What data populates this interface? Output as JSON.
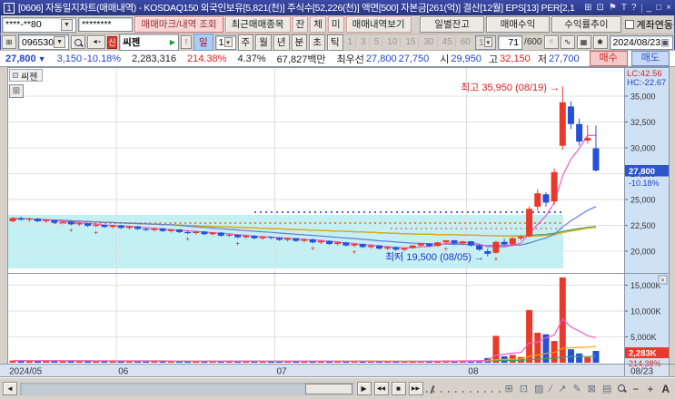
{
  "window": {
    "badge": "1",
    "title": "[0606] 자동일지차트(매매내역) - KOSDAQ150 외국인보유[5,821(천)] 주식수[52,226(천)] 액면[500] 자본금[261(억)] 결산[12월] EPS[13] PER[2,1",
    "icons": [
      "⊞",
      "⊡",
      "⚑",
      "T",
      "?"
    ],
    "min": "_",
    "max": "□",
    "close": "×"
  },
  "icons": {
    "dropdown": "▼",
    "spinner": "▾",
    "calendar": "▣",
    "floppy": "▦",
    "gear": "✱",
    "speaker": "◄",
    "grid": "⊞",
    "window": "⊞",
    "alert": "!",
    "green_play": "▶"
  },
  "toolbar1": {
    "account_value": "****-**80",
    "password_value": "********",
    "btn_mark": "매매마크/내역 조회",
    "btn_recent": "최근매매종목",
    "btn_jan": "잔",
    "btn_che": "체",
    "btn_mi": "미",
    "btn_history": "매매내역보기",
    "btn_daily": "일별잔고",
    "btn_profit": "매매수익",
    "btn_yield": "수익률추이",
    "checkbox_label": "계좌연동"
  },
  "toolbar2": {
    "code_value": "096530",
    "badge": "신",
    "stock_name": "씨젠",
    "period_day": "일",
    "period_unit": "1",
    "periods": [
      "주",
      "월",
      "년",
      "분",
      "초",
      "틱"
    ],
    "tick_presets": [
      "1",
      "3",
      "5",
      "10",
      "15",
      "30",
      "45",
      "60"
    ],
    "preset_select": "1",
    "bar_count": "71",
    "bar_max": "/600",
    "date_value": "2024/08/23"
  },
  "quote": {
    "price": "27,800",
    "arrow": "▼",
    "change": "3,150",
    "change_pct": "-10.18%",
    "volume": "2,283,316",
    "volume_ratio": "214.38%",
    "turnover": "4.37%",
    "amount": "67,827백만",
    "best_label": "최우선",
    "bid": "27,800",
    "ask": "27,750",
    "open_label": "시",
    "open": "29,950",
    "high_label": "고",
    "high": "32,150",
    "low_label": "저",
    "low": "27,700",
    "buy_button": "매수",
    "sell_button": "매도"
  },
  "chart": {
    "tab_label": "씨젠",
    "lc_label": "LC:42.56",
    "hc_label": "HC:-22.67",
    "current_price_label": "27,800",
    "current_pct_label": "-10.18%",
    "current_vol_label": "2,283K",
    "current_vol_pct_label": "214.38%",
    "annotation_high": "최고 35,950 (08/19) →",
    "annotation_low": "최저 19,500 (08/05) →",
    "date_cell": "08/23",
    "colors": {
      "up": "#e8392b",
      "down": "#2650d8",
      "ma5": "#f25ad0",
      "ma20": "#6b79d6",
      "ma60": "#f2a800",
      "ma120": "#3fa36b",
      "ma240": "#a8a8a8",
      "band": "#c3f1f3",
      "axis_bg": "#cfe1f5",
      "marker_blue": "#2f55cd",
      "marker_red": "#e8392b"
    }
  },
  "chart_data": {
    "type": "candlestick+volume",
    "price_axis_ticks": [
      35000,
      32500,
      30000,
      27500,
      25000,
      22500,
      20000
    ],
    "volume_axis_ticks_k": [
      15000,
      10000,
      5000
    ],
    "x_labels": [
      {
        "i": 0,
        "label": "2024/05"
      },
      {
        "i": 13,
        "label": "06"
      },
      {
        "i": 32,
        "label": "07"
      },
      {
        "i": 55,
        "label": "08"
      }
    ],
    "high_point": {
      "price": 35950,
      "date": "08/19"
    },
    "low_point": {
      "price": 19500,
      "date": "08/05"
    },
    "current": {
      "price": 27800,
      "change_pct": -10.18,
      "volume_k": 2283,
      "volume_pct": 214.38,
      "open": 29950,
      "high": 32150,
      "low": 27700
    },
    "trade_mark_indices": [
      7,
      10,
      21,
      27,
      36,
      41,
      46,
      52,
      58
    ],
    "candles": [
      [
        "05/14",
        22900,
        23300,
        22800,
        23200,
        420
      ],
      [
        "05/16",
        23200,
        23350,
        22950,
        23050,
        380
      ],
      [
        "05/17",
        23050,
        23250,
        22850,
        23150,
        350
      ],
      [
        "05/20",
        23150,
        23200,
        22800,
        22900,
        400
      ],
      [
        "05/21",
        22900,
        23100,
        22750,
        23000,
        330
      ],
      [
        "05/22",
        23000,
        23050,
        22650,
        22750,
        360
      ],
      [
        "05/23",
        22750,
        22950,
        22600,
        22850,
        310
      ],
      [
        "05/24",
        22850,
        22900,
        22500,
        22600,
        390
      ],
      [
        "05/27",
        22600,
        22800,
        22450,
        22700,
        300
      ],
      [
        "05/28",
        22700,
        22750,
        22350,
        22450,
        370
      ],
      [
        "05/29",
        22450,
        22650,
        22300,
        22550,
        320
      ],
      [
        "05/30",
        22550,
        22600,
        22250,
        22350,
        340
      ],
      [
        "05/31",
        22350,
        22550,
        22200,
        22500,
        310
      ],
      [
        "06/03",
        22500,
        22550,
        22150,
        22250,
        350
      ],
      [
        "06/04",
        22250,
        22450,
        22100,
        22400,
        300
      ],
      [
        "06/05",
        22400,
        22450,
        22050,
        22150,
        330
      ],
      [
        "06/07",
        22150,
        22300,
        21950,
        22050,
        360
      ],
      [
        "06/10",
        22050,
        22250,
        21900,
        22200,
        280
      ],
      [
        "06/11",
        22200,
        22250,
        21850,
        21950,
        310
      ],
      [
        "06/12",
        21950,
        22150,
        21800,
        22100,
        290
      ],
      [
        "06/13",
        22100,
        22150,
        21750,
        21850,
        340
      ],
      [
        "06/14",
        21850,
        22000,
        21650,
        21750,
        320
      ],
      [
        "06/17",
        21750,
        21950,
        21600,
        21900,
        270
      ],
      [
        "06/18",
        21900,
        21950,
        21550,
        21650,
        300
      ],
      [
        "06/19",
        21650,
        21850,
        21500,
        21800,
        260
      ],
      [
        "06/20",
        21800,
        21850,
        21400,
        21500,
        330
      ],
      [
        "06/21",
        21500,
        21700,
        21350,
        21600,
        280
      ],
      [
        "06/24",
        21600,
        21650,
        21250,
        21350,
        310
      ],
      [
        "06/25",
        21350,
        21550,
        21200,
        21500,
        250
      ],
      [
        "06/26",
        21500,
        21550,
        21150,
        21250,
        290
      ],
      [
        "06/27",
        21250,
        21450,
        21100,
        21400,
        260
      ],
      [
        "06/28",
        21400,
        21450,
        21150,
        21300,
        280
      ],
      [
        "07/01",
        21300,
        21350,
        21000,
        21100,
        300
      ],
      [
        "07/02",
        21100,
        21300,
        20950,
        21250,
        270
      ],
      [
        "07/03",
        21250,
        21300,
        20900,
        21000,
        310
      ],
      [
        "07/04",
        21000,
        21200,
        20850,
        21150,
        240
      ],
      [
        "07/05",
        21150,
        21200,
        20750,
        20850,
        290
      ],
      [
        "07/08",
        20850,
        21050,
        20700,
        21000,
        260
      ],
      [
        "07/09",
        21000,
        21050,
        20600,
        20700,
        320
      ],
      [
        "07/10",
        20700,
        20900,
        20550,
        20850,
        230
      ],
      [
        "07/11",
        20850,
        20900,
        20450,
        20550,
        280
      ],
      [
        "07/12",
        20550,
        20750,
        20400,
        20700,
        250
      ],
      [
        "07/15",
        20700,
        20750,
        20300,
        20400,
        300
      ],
      [
        "07/16",
        20400,
        20600,
        20250,
        20550,
        220
      ],
      [
        "07/17",
        20550,
        20600,
        20150,
        20250,
        270
      ],
      [
        "07/18",
        20250,
        20450,
        20100,
        20400,
        240
      ],
      [
        "07/19",
        20400,
        20450,
        20050,
        20150,
        290
      ],
      [
        "07/22",
        20150,
        20350,
        20000,
        20300,
        230
      ],
      [
        "07/23",
        20300,
        20600,
        20250,
        20550,
        310
      ],
      [
        "07/24",
        20550,
        20800,
        20450,
        20750,
        280
      ],
      [
        "07/25",
        20750,
        20800,
        20400,
        20500,
        260
      ],
      [
        "07/26",
        20500,
        20900,
        20450,
        20850,
        300
      ],
      [
        "07/29",
        20850,
        21100,
        20700,
        21050,
        450
      ],
      [
        "07/30",
        21050,
        21100,
        20650,
        20750,
        380
      ],
      [
        "07/31",
        20750,
        21000,
        20600,
        20950,
        350
      ],
      [
        "08/01",
        20950,
        21000,
        20450,
        20550,
        400
      ],
      [
        "08/02",
        20550,
        20650,
        20050,
        20150,
        460
      ],
      [
        "08/05",
        20000,
        20250,
        19500,
        19750,
        900
      ],
      [
        "08/06",
        19850,
        21000,
        19750,
        20900,
        5200
      ],
      [
        "08/07",
        20900,
        21200,
        20500,
        20650,
        1250
      ],
      [
        "08/08",
        20650,
        21350,
        20550,
        21250,
        1500
      ],
      [
        "08/09",
        21250,
        21550,
        21050,
        21400,
        1100
      ],
      [
        "08/12",
        21450,
        24350,
        21350,
        24100,
        10200
      ],
      [
        "08/13",
        24300,
        26000,
        23900,
        25600,
        5800
      ],
      [
        "08/14",
        25500,
        25700,
        24300,
        24700,
        5500
      ],
      [
        "08/16",
        24800,
        28000,
        24500,
        27650,
        4200
      ],
      [
        "08/19",
        30200,
        35950,
        29800,
        34400,
        16500
      ],
      [
        "08/20",
        34000,
        34500,
        31800,
        32300,
        2600
      ],
      [
        "08/21",
        32300,
        32800,
        30200,
        30600,
        1800
      ],
      [
        "08/22",
        30700,
        32200,
        30400,
        30950,
        1065
      ],
      [
        "08/23",
        29950,
        32150,
        27700,
        27800,
        2283
      ]
    ]
  },
  "bottom": {
    "left_arrow": "◄",
    "playback": [
      "▶",
      "◀◀",
      "■",
      "▶▶"
    ],
    "tools": [
      "⊞",
      "⊡",
      "▨",
      "∕",
      "↗",
      "✎",
      "⊠",
      "▤"
    ],
    "zoom_out": "−",
    "zoom_in": "+",
    "font_tool": "A"
  }
}
